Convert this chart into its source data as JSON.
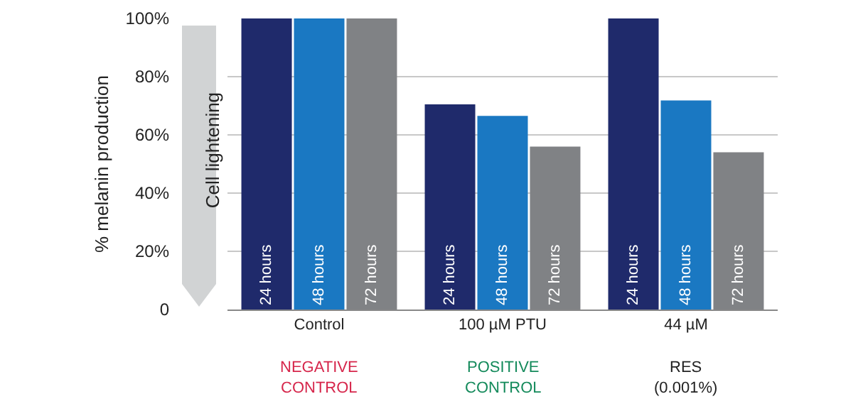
{
  "chart_data": {
    "type": "bar",
    "ylabel": "% melanin production",
    "categories": [
      "Control",
      "100 µM PTU",
      "44 µM"
    ],
    "series": [
      {
        "name": "24 hours",
        "color": "#1f2a6b",
        "values": [
          100,
          70.5,
          100
        ]
      },
      {
        "name": "48 hours",
        "color": "#1a78c2",
        "values": [
          100,
          66.5,
          71.8
        ]
      },
      {
        "name": "72 hours",
        "color": "#808285",
        "values": [
          100,
          56,
          54
        ]
      }
    ],
    "ylim": [
      0,
      100
    ],
    "yticks": [
      0,
      {
        "value": 20,
        "label": "20%"
      },
      {
        "value": 40,
        "label": "40%"
      },
      {
        "value": 60,
        "label": "60%"
      },
      {
        "value": 80,
        "label": "80%"
      },
      {
        "value": 100,
        "label": "100%"
      }
    ],
    "grid": "y",
    "legend": false,
    "annotations": [
      "Cell lightening",
      "NEGATIVE CONTROL",
      "POSITIVE CONTROL",
      "RES (0.001%)"
    ]
  }
}
